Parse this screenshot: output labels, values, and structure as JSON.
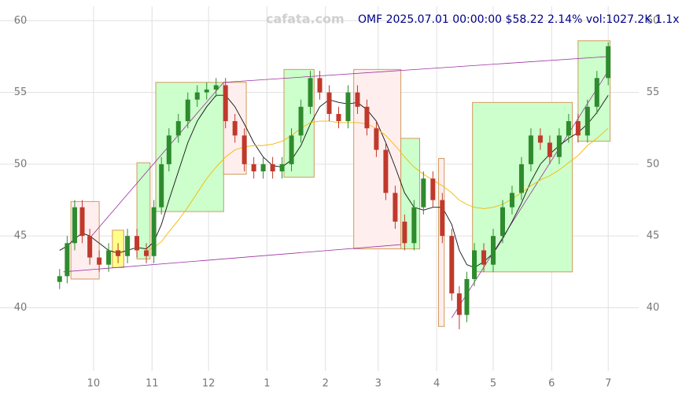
{
  "chart_data": {
    "type": "candlestick",
    "title": "OMF 2025.07.01 00:00:00 $58.22 2.14% vol:1027.2K 1.1x",
    "watermark": "cafata.com",
    "xlim": [
      10,
      305
    ],
    "ylim": [
      35.7,
      61
    ],
    "yticks": [
      40,
      45,
      50,
      55,
      60
    ],
    "xticks": [
      {
        "value": 30,
        "label": "10"
      },
      {
        "value": 61,
        "label": "11"
      },
      {
        "value": 91,
        "label": "12"
      },
      {
        "value": 122,
        "label": "1"
      },
      {
        "value": 153,
        "label": "2"
      },
      {
        "value": 181,
        "label": "3"
      },
      {
        "value": 212,
        "label": "4"
      },
      {
        "value": 242,
        "label": "5"
      },
      {
        "value": 273,
        "label": "6"
      },
      {
        "value": 303,
        "label": "7"
      }
    ],
    "grid": true,
    "up_color": "#2e8b2e",
    "down_color": "#c0392b",
    "x": [
      12,
      16,
      20,
      24,
      28,
      33,
      38,
      43,
      48,
      53,
      58,
      62,
      66,
      70,
      75,
      80,
      85,
      90,
      95,
      100,
      105,
      110,
      115,
      120,
      125,
      130,
      135,
      140,
      145,
      150,
      155,
      160,
      165,
      170,
      175,
      180,
      185,
      190,
      195,
      200,
      205,
      210,
      215,
      220,
      224,
      228,
      232,
      237,
      242,
      247,
      252,
      257,
      262,
      267,
      272,
      277,
      282,
      287,
      292,
      297,
      303
    ],
    "open": [
      41.8,
      42.2,
      44.5,
      47.0,
      45.0,
      43.5,
      43.0,
      44.0,
      43.6,
      45.0,
      44.0,
      43.6,
      47.0,
      50.0,
      52.0,
      53.0,
      54.5,
      55.0,
      55.2,
      55.5,
      53.0,
      52.0,
      50.0,
      49.5,
      50.0,
      49.5,
      50.0,
      52.0,
      54.0,
      56.0,
      55.0,
      53.5,
      53.0,
      55.0,
      54.0,
      52.5,
      51.0,
      48.0,
      46.0,
      44.5,
      47.0,
      49.0,
      47.5,
      45.0,
      41.0,
      39.5,
      42.0,
      44.0,
      43.0,
      45.0,
      47.0,
      48.0,
      50.0,
      52.0,
      51.5,
      50.5,
      52.0,
      53.0,
      52.0,
      54.0,
      56.0
    ],
    "high": [
      42.7,
      45.0,
      47.5,
      47.5,
      45.5,
      44.0,
      44.5,
      44.5,
      45.5,
      45.5,
      44.5,
      47.5,
      50.5,
      52.5,
      53.5,
      55.0,
      55.5,
      55.7,
      56.0,
      56.0,
      53.5,
      52.5,
      50.5,
      50.5,
      50.5,
      50.5,
      52.5,
      54.5,
      56.5,
      56.5,
      55.5,
      54.0,
      55.5,
      55.5,
      54.5,
      53.0,
      51.5,
      48.5,
      46.5,
      47.5,
      49.5,
      49.5,
      48.0,
      45.5,
      41.5,
      42.5,
      44.5,
      44.5,
      45.5,
      47.5,
      48.5,
      50.5,
      52.5,
      52.5,
      52.0,
      52.5,
      53.5,
      53.5,
      54.5,
      56.5,
      58.5
    ],
    "low": [
      41.3,
      41.7,
      44.0,
      44.5,
      43.0,
      42.5,
      42.5,
      43.1,
      43.1,
      43.5,
      43.1,
      43.1,
      46.5,
      49.5,
      51.5,
      52.5,
      54.0,
      54.5,
      54.7,
      52.5,
      51.5,
      49.5,
      49.0,
      49.0,
      49.0,
      49.0,
      49.5,
      51.5,
      53.5,
      54.5,
      53.0,
      52.5,
      52.5,
      53.5,
      52.0,
      50.5,
      47.5,
      45.5,
      44.0,
      44.0,
      46.5,
      47.0,
      44.5,
      40.5,
      38.5,
      39.0,
      41.5,
      42.5,
      42.5,
      44.5,
      46.5,
      47.5,
      49.5,
      51.0,
      50.0,
      50.0,
      51.5,
      51.5,
      51.5,
      53.5,
      55.5
    ],
    "close": [
      42.2,
      44.5,
      47.0,
      45.0,
      43.5,
      43.0,
      44.0,
      43.6,
      45.0,
      44.0,
      43.6,
      47.0,
      50.0,
      52.0,
      53.0,
      54.5,
      55.0,
      55.2,
      55.5,
      53.0,
      52.0,
      50.0,
      49.5,
      50.0,
      49.5,
      50.0,
      52.0,
      54.0,
      56.0,
      55.0,
      53.5,
      53.0,
      55.0,
      54.0,
      52.5,
      51.0,
      48.0,
      46.0,
      44.5,
      47.0,
      49.0,
      47.5,
      45.0,
      41.0,
      39.5,
      42.0,
      44.0,
      43.0,
      45.0,
      47.0,
      48.0,
      50.0,
      52.0,
      51.5,
      50.5,
      52.0,
      53.0,
      52.0,
      54.0,
      56.0,
      58.22
    ],
    "lines": [
      {
        "color": "#111111",
        "values": [
          44.0,
          44.3,
          44.8,
          45.2,
          45.0,
          44.5,
          44.0,
          43.8,
          44.0,
          44.2,
          44.1,
          44.6,
          45.8,
          47.5,
          49.5,
          51.5,
          53.0,
          54.0,
          54.8,
          54.8,
          54.0,
          52.8,
          51.5,
          50.5,
          49.9,
          49.8,
          50.3,
          51.3,
          52.8,
          54.0,
          54.5,
          54.3,
          54.2,
          54.3,
          53.8,
          53.0,
          51.5,
          49.8,
          48.0,
          47.0,
          46.8,
          47.0,
          47.0,
          45.8,
          44.0,
          43.0,
          42.8,
          43.2,
          43.8,
          44.8,
          46.0,
          47.3,
          48.8,
          50.0,
          50.7,
          51.3,
          51.8,
          52.2,
          52.8,
          53.6,
          54.8
        ]
      },
      {
        "color": "#f5b800",
        "values": [
          null,
          null,
          null,
          null,
          null,
          null,
          null,
          null,
          null,
          null,
          44.0,
          44.2,
          44.6,
          45.3,
          46.1,
          47.0,
          48.0,
          49.0,
          49.8,
          50.5,
          51.0,
          51.2,
          51.3,
          51.3,
          51.4,
          51.6,
          52.0,
          52.5,
          52.9,
          53.0,
          53.0,
          52.9,
          52.9,
          52.9,
          52.8,
          52.5,
          52.0,
          51.3,
          50.5,
          49.8,
          49.3,
          48.9,
          48.5,
          48.0,
          47.5,
          47.2,
          47.0,
          46.9,
          47.0,
          47.2,
          47.6,
          48.0,
          48.5,
          48.9,
          49.2,
          49.6,
          50.1,
          50.6,
          51.3,
          51.8,
          52.5
        ]
      }
    ],
    "boxes": [
      {
        "x0": 18,
        "x1": 33,
        "y0": 42.0,
        "y1": 47.4,
        "color": "#ffeeee"
      },
      {
        "x0": 40,
        "x1": 46,
        "y0": 42.8,
        "y1": 45.4,
        "color": "#ffff88"
      },
      {
        "x0": 53,
        "x1": 60,
        "y0": 43.4,
        "y1": 50.1,
        "color": "#ccffcc"
      },
      {
        "x0": 63,
        "x1": 99,
        "y0": 46.7,
        "y1": 55.7,
        "color": "#ccffcc"
      },
      {
        "x0": 99,
        "x1": 111,
        "y0": 49.3,
        "y1": 55.7,
        "color": "#ffeeee"
      },
      {
        "x0": 131,
        "x1": 147,
        "y0": 49.1,
        "y1": 56.6,
        "color": "#ccffcc"
      },
      {
        "x0": 168,
        "x1": 193,
        "y0": 44.1,
        "y1": 56.6,
        "color": "#ffeeee"
      },
      {
        "x0": 193,
        "x1": 203,
        "y0": 44.1,
        "y1": 51.8,
        "color": "#ccffcc"
      },
      {
        "x0": 213,
        "x1": 216,
        "y0": 38.7,
        "y1": 50.4,
        "color": "#ffeeee"
      },
      {
        "x0": 231,
        "x1": 284,
        "y0": 42.5,
        "y1": 54.3,
        "color": "#ccffcc"
      },
      {
        "x0": 287,
        "x1": 304,
        "y0": 51.6,
        "y1": 58.6,
        "color": "#ccffcc"
      }
    ],
    "trendlines": [
      {
        "x0": 14,
        "y0": 42.5,
        "x1": 193,
        "y1": 44.4
      },
      {
        "x0": 99,
        "y0": 55.7,
        "x1": 303,
        "y1": 57.5
      },
      {
        "x0": 27,
        "y0": 44.7,
        "x1": 99,
        "y1": 55.7
      },
      {
        "x0": 220,
        "y0": 39.3,
        "x1": 303,
        "y1": 56.5
      }
    ],
    "trend_color": "#9b30a0"
  }
}
